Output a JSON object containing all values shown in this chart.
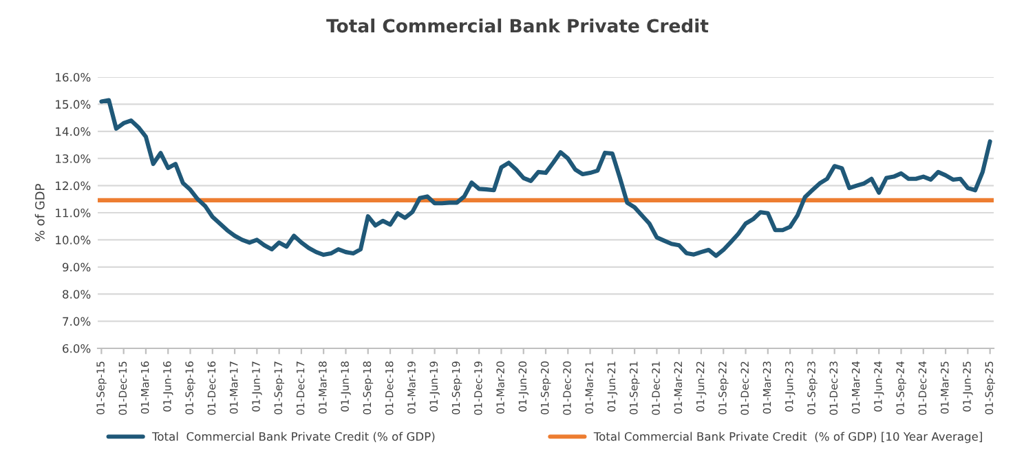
{
  "chart_data": {
    "type": "line",
    "title": "Total Commercial Bank Private Credit",
    "ylabel": "% of GDP",
    "categories": [
      "01-Sep-15",
      null,
      null,
      "01-Dec-15",
      null,
      null,
      "01-Mar-16",
      null,
      null,
      "01-Jun-16",
      null,
      null,
      "01-Sep-16",
      null,
      null,
      "01-Dec-16",
      null,
      null,
      "01-Mar-17",
      null,
      null,
      "01-Jun-17",
      null,
      null,
      "01-Sep-17",
      null,
      null,
      "01-Dec-17",
      null,
      null,
      "01-Mar-18",
      null,
      null,
      "01-Jun-18",
      null,
      null,
      "01-Sep-18",
      null,
      null,
      "01-Dec-18",
      null,
      null,
      "01-Mar-19",
      null,
      null,
      "01-Jun-19",
      null,
      null,
      "01-Sep-19",
      null,
      null,
      "01-Dec-19",
      null,
      null,
      "01-Mar-20",
      null,
      null,
      "01-Jun-20",
      null,
      null,
      "01-Sep-20",
      null,
      null,
      "01-Dec-20",
      null,
      null,
      "01-Mar-21",
      null,
      null,
      "01-Jun-21",
      null,
      null,
      "01-Sep-21",
      null,
      null,
      "01-Dec-21",
      null,
      null,
      "01-Mar-22",
      null,
      null,
      "01-Jun-22",
      null,
      null,
      "01-Sep-22",
      null,
      null,
      "01-Dec-22",
      null,
      null,
      "01-Mar-23",
      null,
      null,
      "01-Jun-23",
      null,
      null,
      "01-Sep-23",
      null,
      null,
      "01-Dec-23",
      null,
      null,
      "01-Mar-24",
      null,
      null,
      "01-Jun-24",
      null,
      null,
      "01-Sep-24",
      null,
      null,
      "01-Dec-24",
      null,
      null,
      "01-Mar-25",
      null,
      null,
      "01-Jun-25",
      null,
      null,
      "01-Sep-25"
    ],
    "series": [
      {
        "name": "Total  Commercial Bank Private Credit (% of GDP)",
        "color": "#1f5878",
        "values": [
          15.1,
          15.15,
          14.1,
          14.3,
          14.4,
          14.15,
          13.8,
          12.8,
          13.2,
          12.65,
          12.8,
          12.1,
          11.85,
          11.5,
          11.25,
          10.85,
          10.6,
          10.35,
          10.15,
          10.0,
          9.9,
          10.0,
          9.8,
          9.65,
          9.9,
          9.75,
          10.15,
          9.9,
          9.7,
          9.55,
          9.45,
          9.5,
          9.65,
          9.55,
          9.5,
          9.65,
          10.87,
          10.53,
          10.7,
          10.56,
          10.98,
          10.81,
          11.03,
          11.54,
          11.6,
          11.35,
          11.35,
          11.37,
          11.37,
          11.6,
          12.11,
          11.88,
          11.86,
          11.83,
          12.67,
          12.84,
          12.59,
          12.28,
          12.17,
          12.5,
          12.47,
          12.84,
          13.23,
          13.0,
          12.59,
          12.42,
          12.47,
          12.55,
          13.21,
          13.18,
          12.3,
          11.37,
          11.2,
          10.9,
          10.6,
          10.09,
          9.97,
          9.85,
          9.8,
          9.51,
          9.46,
          9.55,
          9.63,
          9.41,
          9.63,
          9.92,
          10.22,
          10.6,
          10.76,
          11.02,
          10.98,
          10.36,
          10.36,
          10.48,
          10.9,
          11.57,
          11.83,
          12.08,
          12.25,
          12.72,
          12.64,
          11.91,
          12.0,
          12.08,
          12.25,
          11.74,
          12.28,
          12.33,
          12.45,
          12.25,
          12.25,
          12.33,
          12.22,
          12.5,
          12.38,
          12.22,
          12.25,
          11.91,
          11.83,
          12.5,
          13.63
        ]
      }
    ],
    "ref_lines": [
      {
        "axis": "y",
        "value": 11.46,
        "label": "Total Commercial Bank Private Credit  (% of GDP) [10 Year Average]",
        "color": "#ed7d31"
      }
    ],
    "ylim": [
      6,
      16
    ],
    "yticks": [
      {
        "value": 6,
        "label": "6.0%"
      },
      {
        "value": 7,
        "label": "7.0%"
      },
      {
        "value": 8,
        "label": "8.0%"
      },
      {
        "value": 9,
        "label": "9.0%"
      },
      {
        "value": 10,
        "label": "10.0%"
      },
      {
        "value": 11,
        "label": "11.0%"
      },
      {
        "value": 12,
        "label": "12.0%"
      },
      {
        "value": 13,
        "label": "13.0%"
      },
      {
        "value": 14,
        "label": "14.0%"
      },
      {
        "value": 15,
        "label": "15.0%"
      },
      {
        "value": 16,
        "label": "16.0%"
      }
    ],
    "grid": "y",
    "legend": "bottom",
    "marker": "none",
    "line_style": "solid"
  }
}
